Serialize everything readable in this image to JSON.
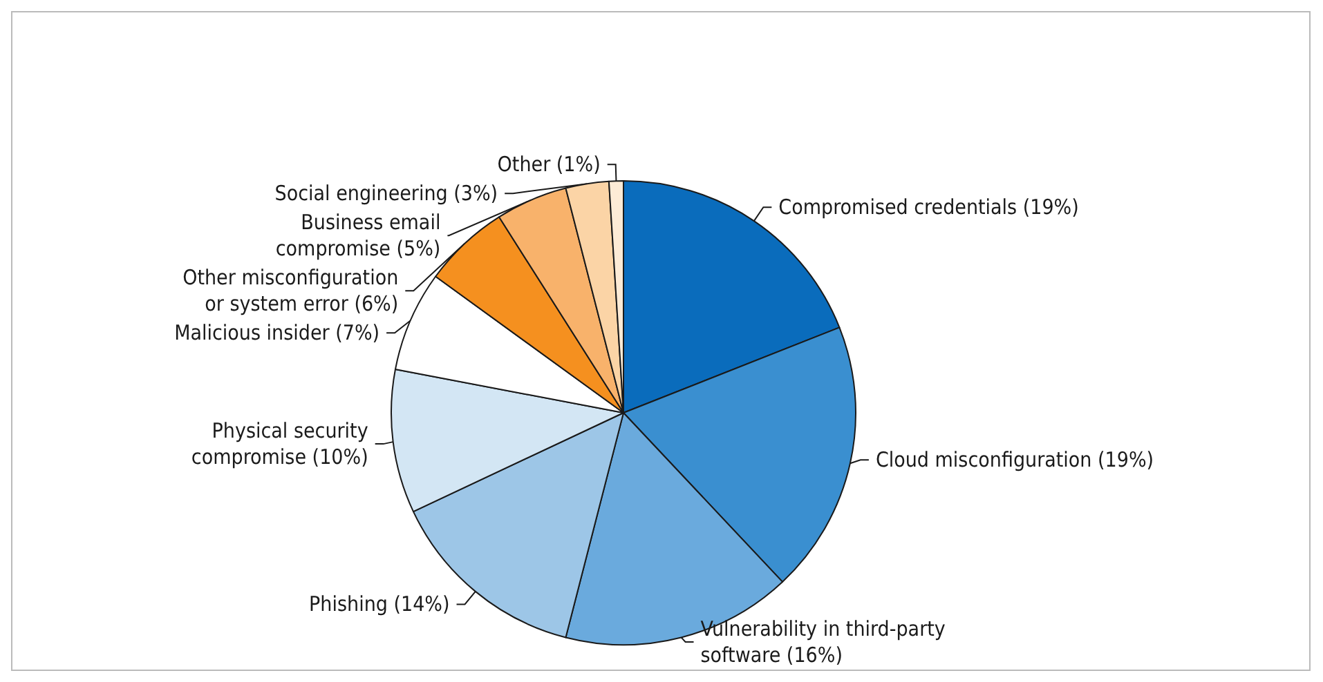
{
  "chart_data": {
    "type": "pie",
    "categories": [
      "Compromised credentials (19%)",
      "Cloud misconfiguration (19%)",
      "Vulnerability in third-party\nsoftware (16%)",
      "Phishing (14%)",
      "Physical security\ncompromise (10%)",
      "Malicious insider (7%)",
      "Other misconfiguration\nor system error (6%)",
      "Business email\ncompromise (5%)",
      "Social engineering (3%)",
      "Other (1%)"
    ],
    "values": [
      19,
      19,
      16,
      14,
      10,
      7,
      6,
      5,
      3,
      1
    ],
    "colors": [
      "#0a6cbc",
      "#3a8fd0",
      "#6aaadd",
      "#9dc6e7",
      "#d3e6f4",
      "#ffffff",
      "#f5901f",
      "#f8b26b",
      "#fbd4a6",
      "#fdebd6"
    ],
    "legend": false
  }
}
